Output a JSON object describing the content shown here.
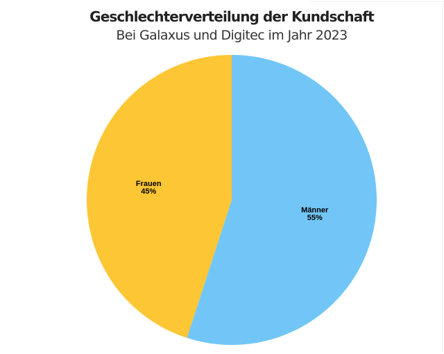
{
  "chart_data": {
    "type": "pie",
    "title": "Geschlechterverteilung der Kundschaft",
    "subtitle": "Bei Galaxus und Digitec im Jahr 2023",
    "slices": [
      {
        "label": "Männer",
        "value": 55,
        "value_label": "55%",
        "color": "#72c6f7"
      },
      {
        "label": "Frauen",
        "value": 45,
        "value_label": "45%",
        "color": "#fdc634"
      }
    ],
    "start_angle_deg": 0,
    "direction": "clockwise",
    "legend": "none"
  }
}
